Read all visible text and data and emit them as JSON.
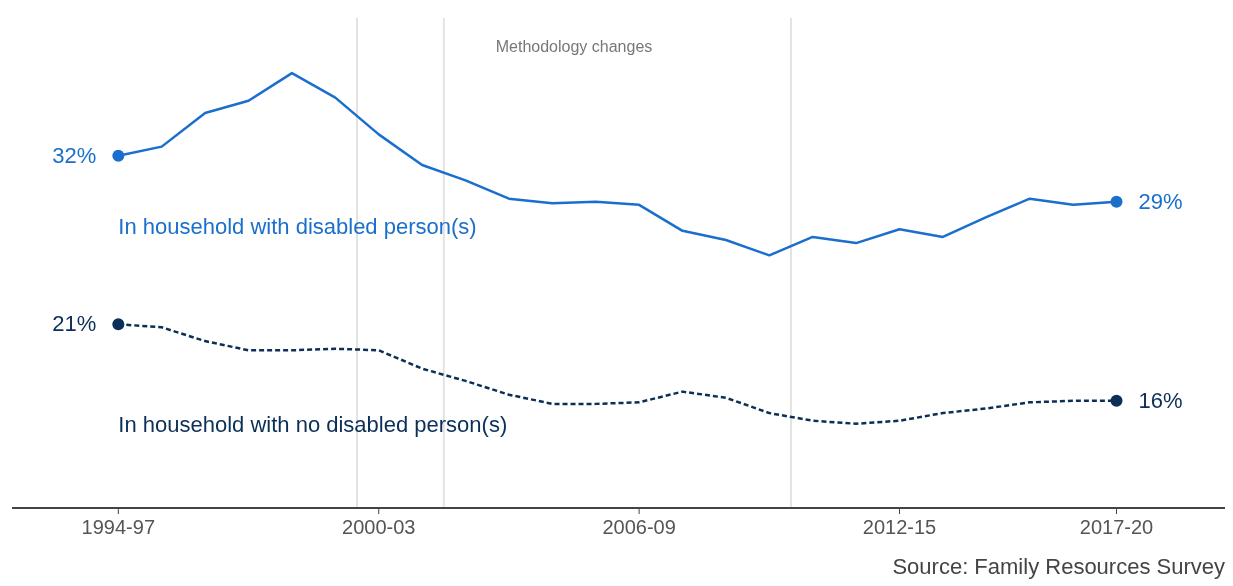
{
  "chart_data": {
    "type": "line",
    "categories": [
      "1994-97",
      null,
      null,
      null,
      null,
      null,
      "2000-03",
      null,
      null,
      null,
      null,
      null,
      "2006-09",
      null,
      null,
      null,
      null,
      null,
      "2012-15",
      null,
      null,
      null,
      null,
      "2017-20"
    ],
    "ylim": [
      9,
      41
    ],
    "tick_labels": "x",
    "series": [
      {
        "name": "In household with disabled person(s)",
        "color": "#1a6fcc",
        "line_style": "solid",
        "values": [
          32,
          32.6,
          34.8,
          35.6,
          37.4,
          35.8,
          33.4,
          31.4,
          30.4,
          29.2,
          28.9,
          29.0,
          28.8,
          27.1,
          26.5,
          25.5,
          26.7,
          26.3,
          27.2,
          26.7,
          28.0,
          29.2,
          28.8,
          29
        ],
        "value_labels": [
          "32%",
          null,
          null,
          null,
          null,
          null,
          null,
          null,
          null,
          null,
          null,
          null,
          null,
          null,
          null,
          null,
          null,
          null,
          null,
          null,
          null,
          null,
          null,
          "29%"
        ]
      },
      {
        "name": "In household with no disabled person(s)",
        "color": "#0b2f57",
        "line_style": "dashed",
        "values": [
          21,
          20.8,
          19.9,
          19.3,
          19.3,
          19.4,
          19.3,
          18.1,
          17.3,
          16.4,
          15.8,
          15.8,
          15.9,
          16.6,
          16.2,
          15.2,
          14.7,
          14.5,
          14.7,
          15.2,
          15.5,
          15.9,
          16.0,
          16
        ],
        "value_labels": [
          "21%",
          null,
          null,
          null,
          null,
          null,
          null,
          null,
          null,
          null,
          null,
          null,
          null,
          null,
          null,
          null,
          null,
          null,
          null,
          null,
          null,
          null,
          null,
          "16%"
        ]
      }
    ],
    "annotations": [
      "Methodology changes",
      "Source: Family Resources Survey"
    ],
    "grid": false,
    "legend": false
  }
}
